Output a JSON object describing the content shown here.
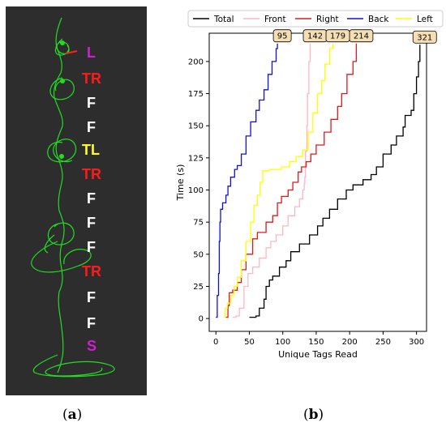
{
  "panel_a": {
    "labels": [
      {
        "text": "L",
        "color": "#d020d0"
      },
      {
        "text": "TR",
        "color": "#ff1a1a"
      },
      {
        "text": "F",
        "color": "#ffffff"
      },
      {
        "text": "F",
        "color": "#ffffff"
      },
      {
        "text": "TL",
        "color": "#ffff1a"
      },
      {
        "text": "TR",
        "color": "#ff1a1a"
      },
      {
        "text": "F",
        "color": "#ffffff"
      },
      {
        "text": "F",
        "color": "#ffffff"
      },
      {
        "text": "F",
        "color": "#ffffff"
      },
      {
        "text": "TR",
        "color": "#ff1a1a"
      },
      {
        "text": "F",
        "color": "#ffffff"
      },
      {
        "text": "F",
        "color": "#ffffff"
      },
      {
        "text": "S",
        "color": "#d020d0"
      }
    ],
    "trajectory_color": "#22dd22",
    "marker_color": "#ff2020"
  },
  "captions": {
    "a": {
      "open": "(",
      "letter": "a",
      "close": ")"
    },
    "b": {
      "open": "(",
      "letter": "b",
      "close": ")"
    }
  },
  "chart_data": {
    "type": "line",
    "xlabel": "Unique Tags Read",
    "ylabel": "Time (s)",
    "xlim": [
      -10,
      315
    ],
    "ylim": [
      -10,
      222
    ],
    "xticks": [
      0,
      50,
      100,
      150,
      200,
      250,
      300
    ],
    "yticks": [
      0,
      25,
      50,
      75,
      100,
      125,
      150,
      175,
      200
    ],
    "legend_position": "top",
    "series": [
      {
        "name": "Total",
        "color": "#000000",
        "end_label": "321",
        "points": [
          [
            50,
            1
          ],
          [
            60,
            2
          ],
          [
            65,
            8
          ],
          [
            72,
            15
          ],
          [
            75,
            25
          ],
          [
            80,
            30
          ],
          [
            85,
            33
          ],
          [
            95,
            40
          ],
          [
            105,
            45
          ],
          [
            112,
            52
          ],
          [
            125,
            58
          ],
          [
            140,
            65
          ],
          [
            152,
            72
          ],
          [
            160,
            78
          ],
          [
            170,
            85
          ],
          [
            182,
            93
          ],
          [
            195,
            100
          ],
          [
            205,
            104
          ],
          [
            220,
            108
          ],
          [
            232,
            112
          ],
          [
            240,
            118
          ],
          [
            250,
            128
          ],
          [
            262,
            135
          ],
          [
            270,
            142
          ],
          [
            280,
            149
          ],
          [
            283,
            158
          ],
          [
            292,
            162
          ],
          [
            296,
            175
          ],
          [
            300,
            188
          ],
          [
            303,
            200
          ],
          [
            305,
            213
          ]
        ]
      },
      {
        "name": "Front",
        "color": "#ffb6c1",
        "end_label": "142",
        "points": [
          [
            25,
            1
          ],
          [
            30,
            2
          ],
          [
            35,
            8
          ],
          [
            42,
            25
          ],
          [
            48,
            35
          ],
          [
            55,
            40
          ],
          [
            65,
            47
          ],
          [
            75,
            55
          ],
          [
            82,
            60
          ],
          [
            90,
            65
          ],
          [
            100,
            72
          ],
          [
            108,
            80
          ],
          [
            118,
            87
          ],
          [
            125,
            93
          ],
          [
            130,
            100
          ],
          [
            132,
            105
          ],
          [
            133,
            110
          ],
          [
            134,
            130
          ],
          [
            136,
            150
          ],
          [
            137,
            175
          ],
          [
            139,
            200
          ],
          [
            141,
            214
          ]
        ]
      },
      {
        "name": "Right",
        "color": "#e0191a",
        "end_label": "214",
        "points": [
          [
            15,
            1
          ],
          [
            18,
            10
          ],
          [
            20,
            20
          ],
          [
            25,
            22
          ],
          [
            32,
            28
          ],
          [
            38,
            38
          ],
          [
            45,
            50
          ],
          [
            55,
            62
          ],
          [
            62,
            67
          ],
          [
            75,
            75
          ],
          [
            85,
            80
          ],
          [
            92,
            90
          ],
          [
            98,
            95
          ],
          [
            108,
            100
          ],
          [
            115,
            106
          ],
          [
            123,
            114
          ],
          [
            128,
            118
          ],
          [
            135,
            122
          ],
          [
            142,
            128
          ],
          [
            150,
            135
          ],
          [
            162,
            145
          ],
          [
            172,
            155
          ],
          [
            182,
            165
          ],
          [
            188,
            175
          ],
          [
            196,
            190
          ],
          [
            205,
            200
          ],
          [
            210,
            214
          ]
        ]
      },
      {
        "name": "Back",
        "color": "#1010d8",
        "end_label": "95",
        "points": [
          [
            0,
            1
          ],
          [
            2,
            18
          ],
          [
            4,
            35
          ],
          [
            5,
            60
          ],
          [
            6,
            75
          ],
          [
            7,
            85
          ],
          [
            10,
            90
          ],
          [
            15,
            96
          ],
          [
            18,
            103
          ],
          [
            22,
            110
          ],
          [
            28,
            116
          ],
          [
            32,
            119
          ],
          [
            38,
            128
          ],
          [
            45,
            142
          ],
          [
            52,
            153
          ],
          [
            60,
            162
          ],
          [
            65,
            170
          ],
          [
            72,
            178
          ],
          [
            78,
            190
          ],
          [
            84,
            200
          ],
          [
            90,
            210
          ],
          [
            92,
            214
          ]
        ]
      },
      {
        "name": "Left",
        "color": "#ffff00",
        "end_label": "179",
        "points": [
          [
            12,
            1
          ],
          [
            14,
            8
          ],
          [
            17,
            12
          ],
          [
            22,
            18
          ],
          [
            27,
            25
          ],
          [
            32,
            32
          ],
          [
            38,
            45
          ],
          [
            45,
            60
          ],
          [
            52,
            75
          ],
          [
            57,
            88
          ],
          [
            62,
            96
          ],
          [
            66,
            106
          ],
          [
            70,
            115
          ],
          [
            80,
            116
          ],
          [
            98,
            118
          ],
          [
            110,
            122
          ],
          [
            120,
            126
          ],
          [
            130,
            131
          ],
          [
            138,
            145
          ],
          [
            145,
            160
          ],
          [
            152,
            175
          ],
          [
            158,
            185
          ],
          [
            163,
            198
          ],
          [
            170,
            210
          ],
          [
            175,
            214
          ]
        ]
      }
    ]
  }
}
